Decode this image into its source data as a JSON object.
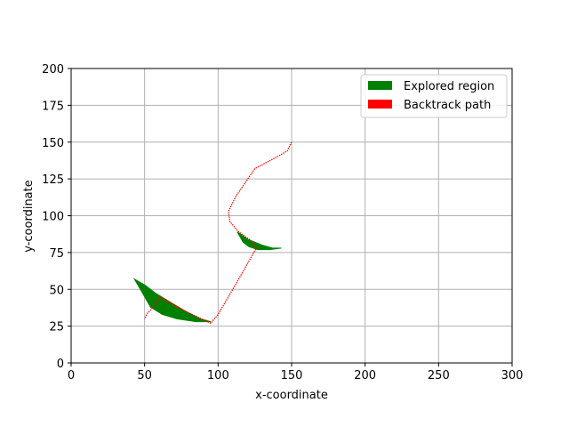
{
  "chart_data": {
    "type": "scatter",
    "title": "",
    "xlabel": "x-coordinate",
    "ylabel": "y-coordinate",
    "xlim": [
      0,
      300
    ],
    "ylim": [
      0,
      200
    ],
    "xticks": [
      "0",
      "50",
      "100",
      "150",
      "200",
      "250",
      "300"
    ],
    "yticks": [
      "0",
      "25",
      "50",
      "75",
      "100",
      "125",
      "150",
      "175",
      "200"
    ],
    "grid": true,
    "legend_position": "top-right",
    "series": [
      {
        "name": "Explored region",
        "color": "#008000",
        "regions": [
          [
            [
              43,
              57
            ],
            [
              50,
              53
            ],
            [
              58,
              47
            ],
            [
              68,
              41
            ],
            [
              78,
              35
            ],
            [
              88,
              30
            ],
            [
              95,
              28
            ],
            [
              85,
              28
            ],
            [
              72,
              30
            ],
            [
              62,
              33
            ],
            [
              54,
              38
            ],
            [
              50,
              45
            ],
            [
              46,
              52
            ]
          ],
          [
            [
              113,
              89
            ],
            [
              120,
              84
            ],
            [
              130,
              80
            ],
            [
              137,
              78
            ],
            [
              143,
              78
            ],
            [
              135,
              77
            ],
            [
              127,
              77
            ],
            [
              121,
              79
            ],
            [
              117,
              82
            ]
          ]
        ]
      },
      {
        "name": "Backtrack path",
        "color": "#ff0000",
        "x": [
          150,
          147,
          140,
          125,
          112,
          107,
          108,
          114,
          124,
          126,
          110,
          100,
          95,
          80,
          65,
          60,
          56,
          52,
          50
        ],
        "y": [
          150,
          144,
          140,
          132,
          113,
          103,
          96,
          89,
          82,
          78,
          50,
          33,
          27,
          34,
          42,
          45,
          38,
          34,
          30
        ]
      }
    ]
  }
}
